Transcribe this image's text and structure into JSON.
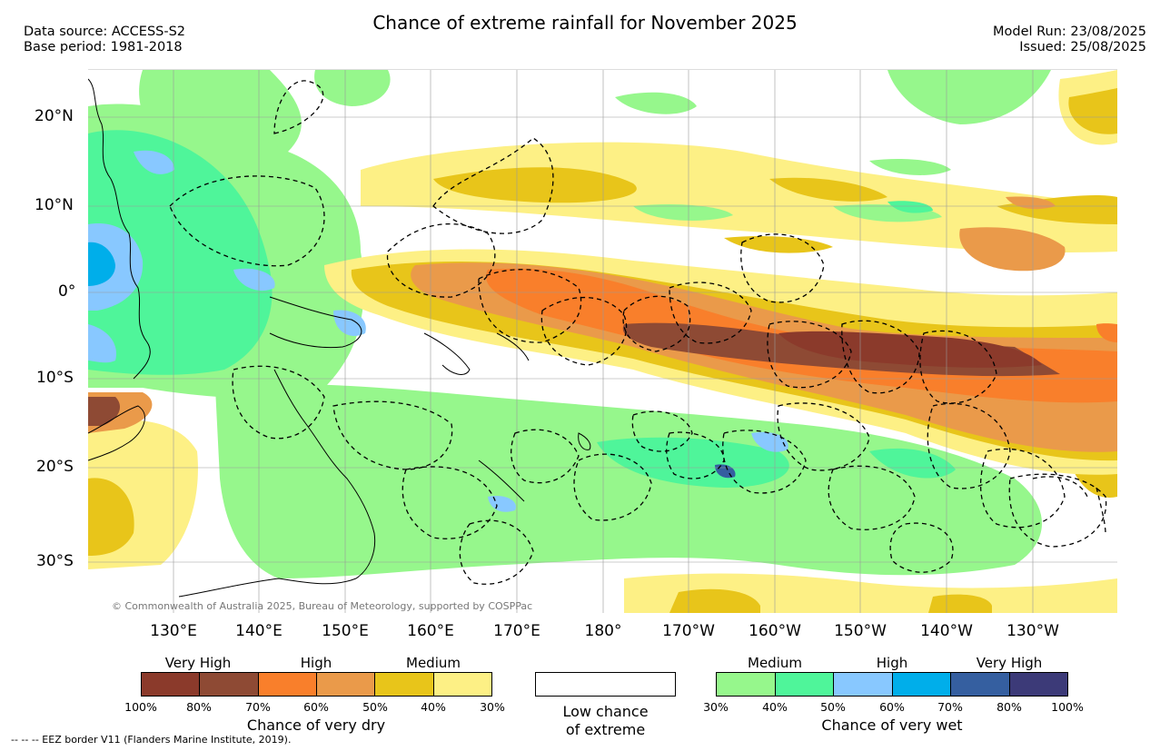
{
  "header": {
    "title": "Chance of extreme rainfall for November 2025",
    "data_source": "Data source: ACCESS-S2",
    "base_period": "Base period: 1981-2018",
    "model_run": "Model Run: 23/08/2025",
    "issued": "Issued: 25/08/2025"
  },
  "map": {
    "copyright": "© Commonwealth of Australia 2025, Bureau of Meteorology, supported by COSPPac",
    "lon_labels": [
      "130°E",
      "140°E",
      "150°E",
      "160°E",
      "170°E",
      "180°",
      "170°W",
      "160°W",
      "150°W",
      "140°W",
      "130°W"
    ],
    "lat_labels": [
      "20°N",
      "10°N",
      "0°",
      "10°S",
      "20°S",
      "30°S"
    ]
  },
  "legend": {
    "dry": {
      "levels": [
        "Very High",
        "High",
        "Medium"
      ],
      "colors": [
        "#8b3a2b",
        "#8e4a34",
        "#f97f2b",
        "#ea9a4a",
        "#e8c51a",
        "#fdf085"
      ],
      "ticks": [
        "100%",
        "80%",
        "70%",
        "60%",
        "50%",
        "40%",
        "30%"
      ],
      "caption": "Chance of very dry"
    },
    "low": {
      "caption_line1": "Low chance",
      "caption_line2": "of extreme"
    },
    "wet": {
      "levels": [
        "Medium",
        "High",
        "Very High"
      ],
      "colors": [
        "#96f78c",
        "#4ff59a",
        "#88c8ff",
        "#00aeea",
        "#355fa0",
        "#3c3a78"
      ],
      "ticks": [
        "30%",
        "40%",
        "50%",
        "60%",
        "70%",
        "80%",
        "100%"
      ],
      "caption": "Chance of very wet"
    }
  },
  "footnote": "--  --  -- EEZ border V11 (Flanders Marine Institute, 2019)."
}
